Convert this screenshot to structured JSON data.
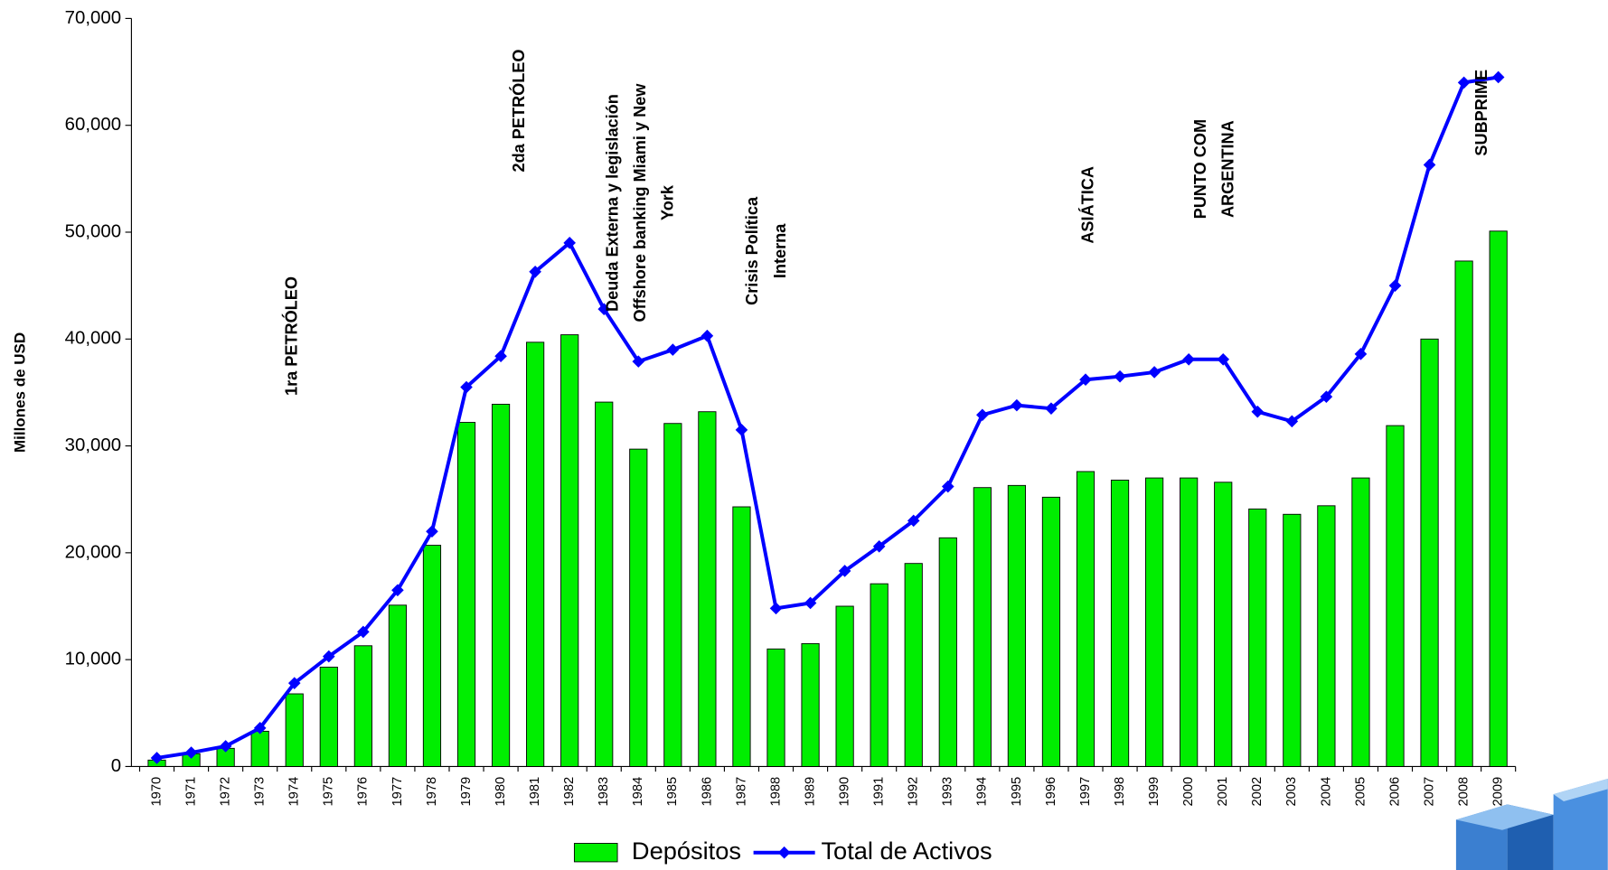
{
  "chart_data": {
    "type": "bar_line",
    "y_axis_label": "Millones de USD",
    "categories": [
      "1970",
      "1971",
      "1972",
      "1973",
      "1974",
      "1975",
      "1976",
      "1977",
      "1978",
      "1979",
      "1980",
      "1981",
      "1982",
      "1983",
      "1984",
      "1985",
      "1986",
      "1987",
      "1988",
      "1989",
      "1990",
      "1991",
      "1992",
      "1993",
      "1994",
      "1995",
      "1996",
      "1997",
      "1998",
      "1999",
      "2000",
      "2001",
      "2002",
      "2003",
      "2004",
      "2005",
      "2006",
      "2007",
      "2008",
      "2009"
    ],
    "series": [
      {
        "name": "Depósitos",
        "type": "bar",
        "color": "#00ee00",
        "values": [
          600,
          1200,
          1700,
          3300,
          6800,
          9300,
          11300,
          15100,
          20700,
          32200,
          33900,
          39700,
          40400,
          34100,
          29700,
          32100,
          33200,
          24300,
          11000,
          11500,
          15000,
          17100,
          19000,
          21400,
          26100,
          26300,
          25200,
          27600,
          26800,
          27000,
          27000,
          26600,
          24100,
          23600,
          24400,
          27000,
          31900,
          40000,
          47300,
          50100
        ]
      },
      {
        "name": "Total de Activos",
        "type": "line",
        "color": "#0000ff",
        "values": [
          800,
          1300,
          1900,
          3600,
          7800,
          10300,
          12600,
          16500,
          22000,
          35500,
          38400,
          46300,
          49000,
          42800,
          37900,
          39000,
          40300,
          31500,
          14800,
          15300,
          18300,
          20600,
          23000,
          26200,
          32900,
          33800,
          33500,
          36200,
          36500,
          36900,
          38100,
          38100,
          33200,
          32300,
          34600,
          38600,
          45000,
          56300,
          64000,
          64500
        ]
      }
    ],
    "ylim": [
      0,
      70000
    ],
    "yticks": [
      0,
      {
        "value": 10000,
        "label": "10,000"
      },
      {
        "value": 20000,
        "label": "20,000"
      },
      {
        "value": 30000,
        "label": "30,000"
      },
      {
        "value": 40000,
        "label": "40,000"
      },
      {
        "value": 50000,
        "label": "50,000"
      },
      {
        "value": 60000,
        "label": "60,000"
      },
      {
        "value": 70000,
        "label": "70,000"
      }
    ],
    "annotations": [
      [
        "1ra PETRÓLEO"
      ],
      [
        "2da PETRÓLEO"
      ],
      [
        "Deuda Externa  y legislación",
        "Offshore banking Miami y New",
        "York"
      ],
      [
        "Crisis Política",
        "Interna"
      ],
      [
        "ASIÁTICA"
      ],
      [
        "PUNTO COM",
        "ARGENTINA"
      ],
      [
        "SUBPRIME"
      ]
    ],
    "legend": "bottom"
  }
}
